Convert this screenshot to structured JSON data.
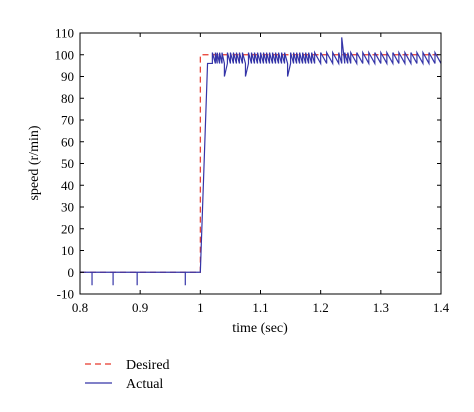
{
  "chart_data": {
    "type": "line",
    "xlabel": "time (sec)",
    "ylabel": "speed (r/min)",
    "xlim": [
      0.8,
      1.4
    ],
    "ylim": [
      -10,
      110
    ],
    "x_ticks": [
      "0.8",
      "0.9",
      "1",
      "1.1",
      "1.2",
      "1.3",
      "1.4"
    ],
    "y_ticks": [
      "-10",
      "0",
      "10",
      "20",
      "30",
      "40",
      "50",
      "60",
      "70",
      "80",
      "90",
      "100",
      "110"
    ],
    "grid": false,
    "legend_position": "bottom-left outside",
    "series": [
      {
        "name": "Desired",
        "color": "#e8372b",
        "line_style": "dashed",
        "x": [
          0.8,
          1.0,
          1.0,
          1.4
        ],
        "y": [
          0,
          0,
          100,
          100
        ]
      },
      {
        "name": "Actual",
        "color": "#3535a8",
        "line_style": "solid",
        "x": [
          0.8,
          0.82,
          0.82,
          0.82,
          0.855,
          0.855,
          0.855,
          0.895,
          0.895,
          0.895,
          0.975,
          0.975,
          0.975,
          1.0,
          1.012,
          1.02,
          1.02,
          1.025,
          1.025,
          1.028,
          1.028,
          1.032,
          1.032,
          1.036,
          1.036,
          1.04,
          1.04,
          1.045,
          1.045,
          1.05,
          1.05,
          1.055,
          1.055,
          1.06,
          1.06,
          1.065,
          1.065,
          1.07,
          1.07,
          1.075,
          1.075,
          1.08,
          1.08,
          1.085,
          1.085,
          1.09,
          1.09,
          1.095,
          1.095,
          1.1,
          1.1,
          1.105,
          1.105,
          1.11,
          1.11,
          1.115,
          1.115,
          1.12,
          1.12,
          1.125,
          1.125,
          1.13,
          1.13,
          1.135,
          1.135,
          1.14,
          1.14,
          1.145,
          1.145,
          1.15,
          1.15,
          1.155,
          1.155,
          1.16,
          1.16,
          1.165,
          1.165,
          1.17,
          1.17,
          1.175,
          1.175,
          1.18,
          1.18,
          1.185,
          1.185,
          1.19,
          1.19,
          1.2,
          1.2,
          1.21,
          1.21,
          1.22,
          1.22,
          1.23,
          1.23,
          1.235,
          1.235,
          1.24,
          1.24,
          1.245,
          1.245,
          1.25,
          1.25,
          1.26,
          1.26,
          1.27,
          1.27,
          1.28,
          1.28,
          1.29,
          1.29,
          1.3,
          1.3,
          1.31,
          1.31,
          1.32,
          1.32,
          1.33,
          1.33,
          1.34,
          1.34,
          1.35,
          1.35,
          1.36,
          1.36,
          1.37,
          1.37,
          1.38,
          1.38,
          1.39,
          1.39,
          1.4
        ],
        "y": [
          0,
          0,
          -6,
          0,
          0,
          -6,
          0,
          0,
          -6,
          0,
          0,
          -6,
          0,
          0,
          96,
          96,
          101,
          96,
          101,
          96,
          101,
          96,
          101,
          96,
          101,
          96,
          90,
          96,
          101,
          96,
          101,
          96,
          101,
          96,
          101,
          96,
          101,
          96,
          101,
          96,
          90,
          96,
          101,
          96,
          101,
          96,
          101,
          96,
          101,
          96,
          101,
          96,
          101,
          96,
          101,
          96,
          101,
          96,
          101,
          96,
          101,
          96,
          101,
          96,
          101,
          96,
          101,
          96,
          90,
          96,
          101,
          96,
          101,
          96,
          101,
          96,
          101,
          96,
          101,
          96,
          101,
          96,
          101,
          96,
          101,
          96,
          101,
          96,
          101,
          96,
          101,
          96,
          101,
          96,
          101,
          96,
          108,
          96,
          101,
          96,
          101,
          96,
          101,
          96,
          101,
          96,
          101,
          96,
          101,
          96,
          101,
          96,
          101,
          96,
          101,
          96,
          101,
          96,
          101,
          96,
          101,
          96,
          101,
          96,
          101,
          96,
          101,
          96,
          101,
          96,
          101,
          96
        ]
      }
    ]
  }
}
